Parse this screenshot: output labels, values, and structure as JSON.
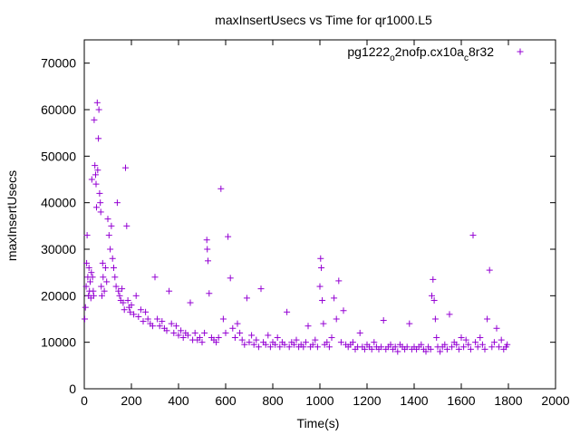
{
  "chart_data": {
    "type": "scatter",
    "title": "maxInsertUsecs vs Time for qr1000.L5",
    "xlabel": "Time(s)",
    "ylabel": "maxInsertUsecs",
    "xlim": [
      0,
      2000
    ],
    "ylim": [
      0,
      75000
    ],
    "x_ticks": [
      "0",
      "200",
      "400",
      "600",
      "800",
      "1000",
      "1200",
      "1400",
      "1600",
      "1800",
      "2000"
    ],
    "y_ticks": [
      "0",
      "10000",
      "20000",
      "30000",
      "40000",
      "50000",
      "60000",
      "70000"
    ],
    "grid": false,
    "legend_position": "top-right",
    "marker": "+",
    "series": [
      {
        "name": "pg1222_o2nofp.cx10a_c8r32",
        "legend_parts": [
          "pg1222",
          "o",
          "2nofp.cx10a",
          "c",
          "8r32"
        ],
        "color": "#9400d3",
        "points": [
          [
            2,
            15000
          ],
          [
            5,
            17500
          ],
          [
            8,
            22000
          ],
          [
            10,
            27000
          ],
          [
            12,
            33000
          ],
          [
            15,
            24000
          ],
          [
            18,
            20000
          ],
          [
            20,
            26000
          ],
          [
            22,
            21000
          ],
          [
            25,
            23000
          ],
          [
            28,
            19500
          ],
          [
            30,
            25000
          ],
          [
            32,
            45000
          ],
          [
            35,
            24000
          ],
          [
            38,
            21000
          ],
          [
            40,
            20000
          ],
          [
            42,
            57800
          ],
          [
            45,
            48000
          ],
          [
            48,
            46000
          ],
          [
            50,
            44000
          ],
          [
            52,
            39000
          ],
          [
            55,
            61500
          ],
          [
            57,
            47000
          ],
          [
            60,
            53800
          ],
          [
            62,
            60000
          ],
          [
            65,
            42000
          ],
          [
            68,
            40000
          ],
          [
            70,
            38000
          ],
          [
            72,
            22000
          ],
          [
            75,
            20000
          ],
          [
            78,
            27000
          ],
          [
            80,
            24000
          ],
          [
            85,
            21000
          ],
          [
            90,
            26000
          ],
          [
            95,
            23000
          ],
          [
            100,
            36500
          ],
          [
            105,
            33000
          ],
          [
            110,
            30000
          ],
          [
            115,
            35000
          ],
          [
            120,
            28000
          ],
          [
            125,
            26000
          ],
          [
            130,
            24000
          ],
          [
            135,
            22000
          ],
          [
            140,
            40000
          ],
          [
            145,
            21000
          ],
          [
            150,
            20000
          ],
          [
            155,
            19000
          ],
          [
            160,
            21500
          ],
          [
            165,
            18500
          ],
          [
            170,
            17000
          ],
          [
            175,
            47500
          ],
          [
            180,
            35000
          ],
          [
            185,
            19000
          ],
          [
            190,
            17500
          ],
          [
            195,
            16500
          ],
          [
            200,
            18000
          ],
          [
            210,
            16000
          ],
          [
            220,
            20000
          ],
          [
            230,
            15500
          ],
          [
            240,
            17000
          ],
          [
            250,
            14500
          ],
          [
            260,
            16500
          ],
          [
            270,
            15000
          ],
          [
            280,
            14000
          ],
          [
            290,
            13500
          ],
          [
            300,
            24000
          ],
          [
            310,
            15000
          ],
          [
            320,
            13500
          ],
          [
            330,
            14500
          ],
          [
            340,
            13000
          ],
          [
            350,
            12500
          ],
          [
            360,
            21000
          ],
          [
            370,
            14000
          ],
          [
            380,
            12000
          ],
          [
            390,
            13500
          ],
          [
            400,
            11500
          ],
          [
            410,
            12500
          ],
          [
            420,
            11000
          ],
          [
            430,
            12000
          ],
          [
            440,
            11500
          ],
          [
            450,
            18500
          ],
          [
            460,
            10500
          ],
          [
            470,
            12000
          ],
          [
            480,
            10500
          ],
          [
            490,
            11000
          ],
          [
            500,
            10000
          ],
          [
            510,
            12000
          ],
          [
            520,
            32000
          ],
          [
            522,
            30000
          ],
          [
            525,
            27500
          ],
          [
            530,
            20500
          ],
          [
            540,
            11000
          ],
          [
            550,
            10500
          ],
          [
            560,
            10000
          ],
          [
            570,
            11000
          ],
          [
            580,
            43000
          ],
          [
            590,
            15000
          ],
          [
            600,
            12000
          ],
          [
            610,
            32700
          ],
          [
            620,
            23800
          ],
          [
            630,
            13000
          ],
          [
            640,
            11000
          ],
          [
            650,
            14000
          ],
          [
            660,
            12000
          ],
          [
            670,
            10500
          ],
          [
            680,
            9500
          ],
          [
            690,
            19500
          ],
          [
            700,
            10000
          ],
          [
            710,
            11500
          ],
          [
            720,
            9500
          ],
          [
            730,
            10500
          ],
          [
            740,
            9000
          ],
          [
            750,
            21500
          ],
          [
            760,
            10000
          ],
          [
            770,
            9500
          ],
          [
            780,
            11500
          ],
          [
            790,
            9000
          ],
          [
            800,
            10000
          ],
          [
            810,
            9500
          ],
          [
            820,
            11000
          ],
          [
            830,
            9000
          ],
          [
            840,
            10000
          ],
          [
            850,
            9500
          ],
          [
            860,
            16500
          ],
          [
            870,
            9000
          ],
          [
            880,
            10000
          ],
          [
            890,
            9500
          ],
          [
            900,
            10500
          ],
          [
            910,
            9000
          ],
          [
            920,
            9500
          ],
          [
            930,
            9000
          ],
          [
            940,
            10000
          ],
          [
            950,
            13500
          ],
          [
            960,
            9000
          ],
          [
            970,
            9500
          ],
          [
            980,
            10500
          ],
          [
            990,
            9000
          ],
          [
            1000,
            22000
          ],
          [
            1003,
            28000
          ],
          [
            1006,
            26000
          ],
          [
            1010,
            19000
          ],
          [
            1015,
            14000
          ],
          [
            1020,
            9500
          ],
          [
            1030,
            10000
          ],
          [
            1040,
            9000
          ],
          [
            1050,
            11000
          ],
          [
            1060,
            19500
          ],
          [
            1070,
            15000
          ],
          [
            1080,
            23200
          ],
          [
            1090,
            10000
          ],
          [
            1100,
            16800
          ],
          [
            1110,
            9500
          ],
          [
            1120,
            9000
          ],
          [
            1130,
            9500
          ],
          [
            1140,
            10000
          ],
          [
            1150,
            8500
          ],
          [
            1160,
            9000
          ],
          [
            1170,
            12000
          ],
          [
            1180,
            9000
          ],
          [
            1190,
            8500
          ],
          [
            1200,
            9500
          ],
          [
            1210,
            9000
          ],
          [
            1220,
            8500
          ],
          [
            1230,
            10000
          ],
          [
            1240,
            9000
          ],
          [
            1250,
            8500
          ],
          [
            1260,
            9000
          ],
          [
            1270,
            14700
          ],
          [
            1280,
            8500
          ],
          [
            1290,
            9000
          ],
          [
            1300,
            9500
          ],
          [
            1310,
            8500
          ],
          [
            1320,
            9000
          ],
          [
            1330,
            8000
          ],
          [
            1340,
            9500
          ],
          [
            1350,
            9000
          ],
          [
            1360,
            8500
          ],
          [
            1370,
            9000
          ],
          [
            1380,
            14000
          ],
          [
            1390,
            8500
          ],
          [
            1400,
            9000
          ],
          [
            1410,
            8500
          ],
          [
            1420,
            9000
          ],
          [
            1430,
            9500
          ],
          [
            1440,
            8500
          ],
          [
            1450,
            8000
          ],
          [
            1460,
            9000
          ],
          [
            1470,
            8500
          ],
          [
            1475,
            20000
          ],
          [
            1480,
            23500
          ],
          [
            1485,
            19000
          ],
          [
            1490,
            15000
          ],
          [
            1495,
            11000
          ],
          [
            1500,
            9000
          ],
          [
            1510,
            8000
          ],
          [
            1520,
            9000
          ],
          [
            1530,
            9500
          ],
          [
            1540,
            8500
          ],
          [
            1550,
            16000
          ],
          [
            1560,
            9000
          ],
          [
            1570,
            10000
          ],
          [
            1580,
            9500
          ],
          [
            1590,
            8500
          ],
          [
            1600,
            11000
          ],
          [
            1610,
            9000
          ],
          [
            1620,
            10500
          ],
          [
            1630,
            9500
          ],
          [
            1640,
            8500
          ],
          [
            1650,
            33000
          ],
          [
            1660,
            10000
          ],
          [
            1670,
            9000
          ],
          [
            1680,
            11000
          ],
          [
            1690,
            9500
          ],
          [
            1700,
            8500
          ],
          [
            1710,
            15000
          ],
          [
            1720,
            25500
          ],
          [
            1730,
            9000
          ],
          [
            1740,
            10000
          ],
          [
            1750,
            13000
          ],
          [
            1760,
            9000
          ],
          [
            1770,
            10500
          ],
          [
            1780,
            8500
          ],
          [
            1790,
            9000
          ],
          [
            1795,
            9500
          ]
        ]
      }
    ]
  }
}
